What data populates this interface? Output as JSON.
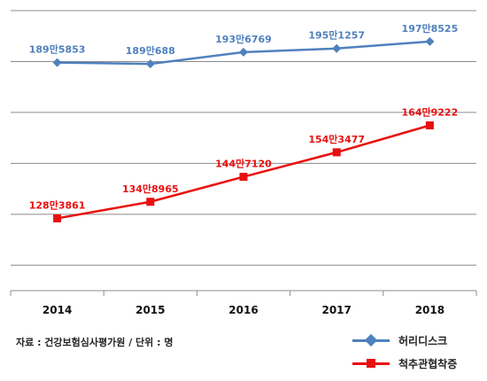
{
  "chart_data": {
    "type": "line",
    "categories": [
      "2014",
      "2015",
      "2016",
      "2017",
      "2018"
    ],
    "series": [
      {
        "name": "허리디스크",
        "color": "#4f81bd",
        "marker": "diamond",
        "values": [
          1895853,
          1890688,
          1936769,
          1951257,
          1978525
        ],
        "labels": [
          "189만5853",
          "189만688",
          "193만6769",
          "195만1257",
          "197만8525"
        ]
      },
      {
        "name": "척추관협착증",
        "color": "#e8100f",
        "marker": "square",
        "values": [
          1283861,
          1348965,
          1447120,
          1543477,
          1649222
        ],
        "labels": [
          "128만3861",
          "134만8965",
          "144만7120",
          "154만3477",
          "164만9222"
        ]
      }
    ],
    "ylim": [
      1000000,
      2100000
    ],
    "grid": true,
    "legend_position": "bottom-right"
  },
  "source_note": "자료 : 건강보험심사평가원 / 단위 : 명"
}
